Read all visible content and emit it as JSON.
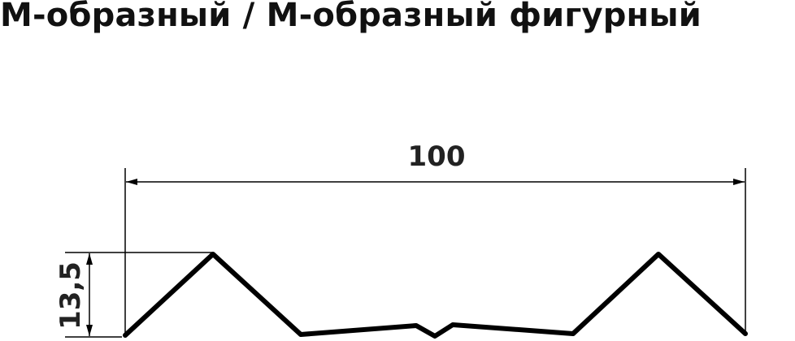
{
  "title": "М-образный / М-образный фигурный",
  "dimensions": {
    "width_label": "100",
    "height_label": "13,5"
  },
  "colors": {
    "profile": "#000000",
    "dimension_lines": "#000000",
    "text": "#222222"
  }
}
